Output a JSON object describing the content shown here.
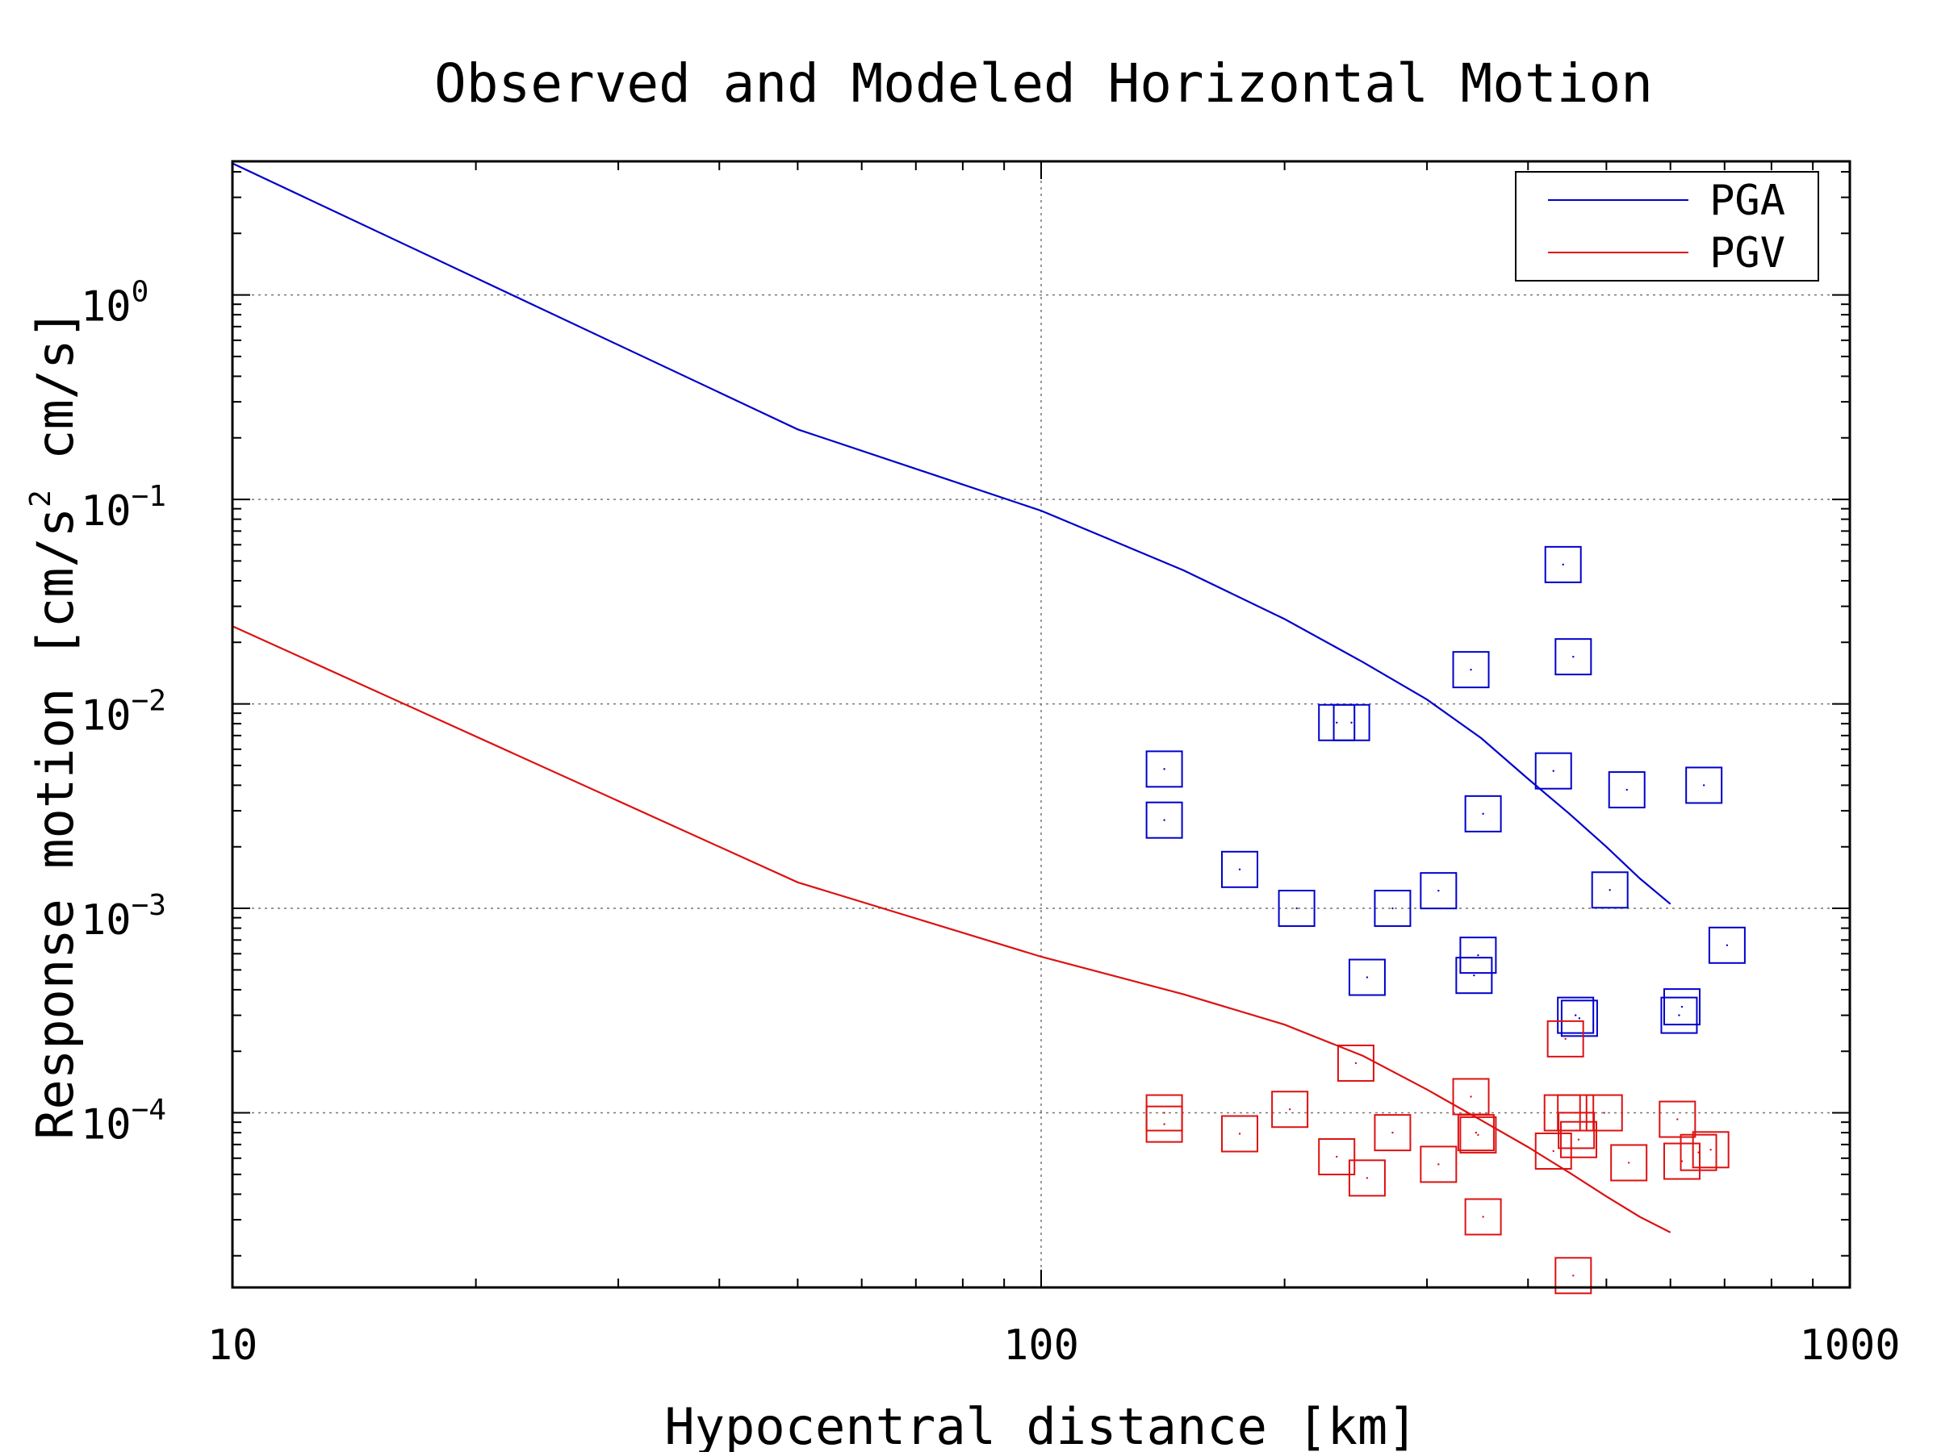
{
  "chart_data": {
    "type": "scatter",
    "title": "Observed and Modeled Horizontal Motion",
    "xlabel": "Hypocentral distance [km]",
    "ylabel": "Response motion [cm/s",
    "ylabel_exponent": "2",
    "ylabel_suffix": "cm/s]",
    "xscale": "log",
    "yscale": "log",
    "xlim": [
      10,
      1000
    ],
    "ylim": [
      1.4e-05,
      4.5
    ],
    "x_ticks": [
      {
        "value": 10,
        "label": "10"
      },
      {
        "value": 100,
        "label": "100"
      },
      {
        "value": 1000,
        "label": "1000"
      }
    ],
    "y_ticks": [
      {
        "value": 1,
        "base": "10",
        "exp": "0"
      },
      {
        "value": 0.1,
        "base": "10",
        "exp": "−1"
      },
      {
        "value": 0.01,
        "base": "10",
        "exp": "−2"
      },
      {
        "value": 0.001,
        "base": "10",
        "exp": "−3"
      },
      {
        "value": 0.0001,
        "base": "10",
        "exp": "−4"
      }
    ],
    "grid": true,
    "legend_position": "top-right",
    "colors": {
      "pga": "#0000cc",
      "pgv": "#dd1111",
      "axis": "#000000",
      "grid": "#777777"
    },
    "lines": [
      {
        "name": "PGA",
        "color": "#0000cc",
        "x": [
          10,
          50,
          100,
          150,
          200,
          250,
          300,
          350,
          400,
          450,
          500,
          550,
          600
        ],
        "y": [
          4.4,
          0.22,
          0.088,
          0.045,
          0.026,
          0.016,
          0.0105,
          0.0068,
          0.0043,
          0.0029,
          0.002,
          0.0014,
          0.00105
        ]
      },
      {
        "name": "PGV",
        "color": "#dd1111",
        "x": [
          10,
          50,
          100,
          150,
          200,
          250,
          300,
          350,
          400,
          450,
          500,
          550,
          600
        ],
        "y": [
          0.024,
          0.00134,
          0.00058,
          0.00038,
          0.00027,
          0.00019,
          0.00013,
          9.2e-05,
          6.8e-05,
          5.1e-05,
          3.9e-05,
          3.1e-05,
          2.6e-05
        ]
      }
    ],
    "observed_pga": {
      "color": "#0000cc",
      "x": [
        442,
        455,
        340,
        232,
        242,
        142,
        142,
        430,
        530,
        660,
        352,
        176,
        207,
        310,
        272,
        347,
        253,
        343,
        505,
        705,
        458,
        463,
        615,
        620
      ],
      "y": [
        0.048,
        0.017,
        0.0147,
        0.0081,
        0.0081,
        0.0048,
        0.0027,
        0.0047,
        0.0038,
        0.004,
        0.0029,
        0.00155,
        0.001,
        0.00122,
        0.001,
        0.00059,
        0.00046,
        0.00047,
        0.00123,
        0.00066,
        0.0003,
        0.00029,
        0.0003,
        0.00033
      ]
    },
    "observed_pgv": {
      "color": "#dd1111",
      "x": [
        245,
        142,
        142,
        176,
        203,
        232,
        253,
        272,
        310,
        340,
        345,
        347,
        352,
        430,
        445,
        458,
        459,
        462,
        497,
        533,
        612,
        620,
        650,
        673,
        455,
        441
      ],
      "y": [
        0.000175,
        0.0001,
        8.8e-05,
        7.9e-05,
        0.000104,
        6.1e-05,
        4.8e-05,
        8e-05,
        5.6e-05,
        0.00012,
        8e-05,
        7.8e-05,
        3.1e-05,
        6.5e-05,
        0.00023,
        0.0001,
        8.2e-05,
        7.4e-05,
        0.0001,
        5.7e-05,
        9.3e-05,
        5.8e-05,
        6.4e-05,
        6.6e-05,
        1.6e-05,
        0.0001
      ]
    }
  }
}
